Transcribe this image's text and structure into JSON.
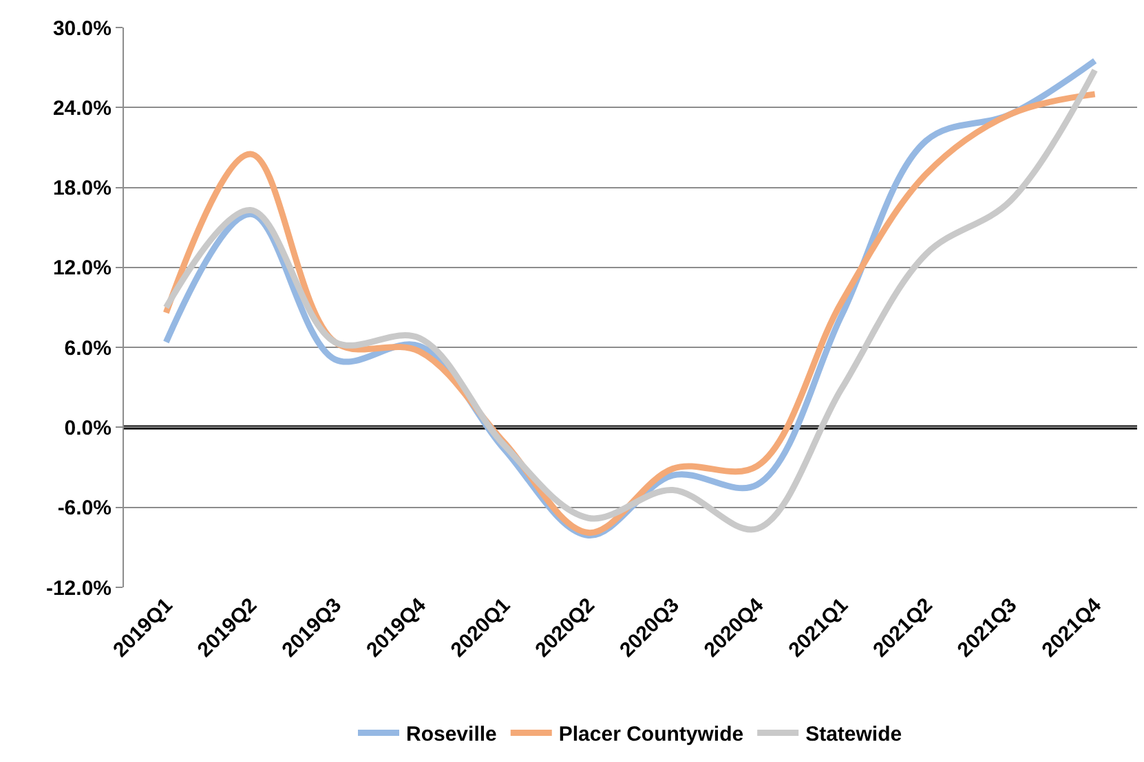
{
  "chart_data": {
    "type": "line",
    "categories": [
      "2019Q1",
      "2019Q2",
      "2019Q3",
      "2019Q4",
      "2020Q1",
      "2020Q2",
      "2020Q3",
      "2020Q4",
      "2021Q1",
      "2021Q2",
      "2021Q3",
      "2021Q4"
    ],
    "series": [
      {
        "name": "Roseville",
        "color": "#95b8e3",
        "values": [
          6.4,
          16.0,
          5.1,
          6.1,
          -1.6,
          -8.1,
          -3.6,
          -4.3,
          8.4,
          21.5,
          23.5,
          27.5
        ]
      },
      {
        "name": "Placer Countywide",
        "color": "#f4a977",
        "values": [
          8.6,
          20.5,
          6.4,
          5.7,
          -1.1,
          -7.9,
          -3.1,
          -2.9,
          9.4,
          19.0,
          23.5,
          25.0
        ]
      },
      {
        "name": "Statewide",
        "color": "#c9c9c9",
        "values": [
          9.0,
          16.3,
          6.4,
          6.7,
          -1.3,
          -6.8,
          -4.7,
          -7.6,
          2.9,
          13.0,
          17.0,
          26.8
        ]
      }
    ],
    "ylim": [
      -12,
      30
    ],
    "yticks": [
      {
        "value": -12,
        "label": "-12.0%"
      },
      {
        "value": -6,
        "label": "-6.0%"
      },
      {
        "value": 0,
        "label": "0.0%"
      },
      {
        "value": 6,
        "label": "6.0%"
      },
      {
        "value": 12,
        "label": "12.0%"
      },
      {
        "value": 18,
        "label": "18.0%"
      },
      {
        "value": 24,
        "label": "24.0%"
      },
      {
        "value": 30,
        "label": "30.0%"
      }
    ],
    "ref_lines": [
      {
        "axis": "y",
        "value": 0,
        "color": "#000000"
      }
    ],
    "grid": "y",
    "legend": "bottom",
    "marker": "none",
    "line_style": "solid"
  }
}
